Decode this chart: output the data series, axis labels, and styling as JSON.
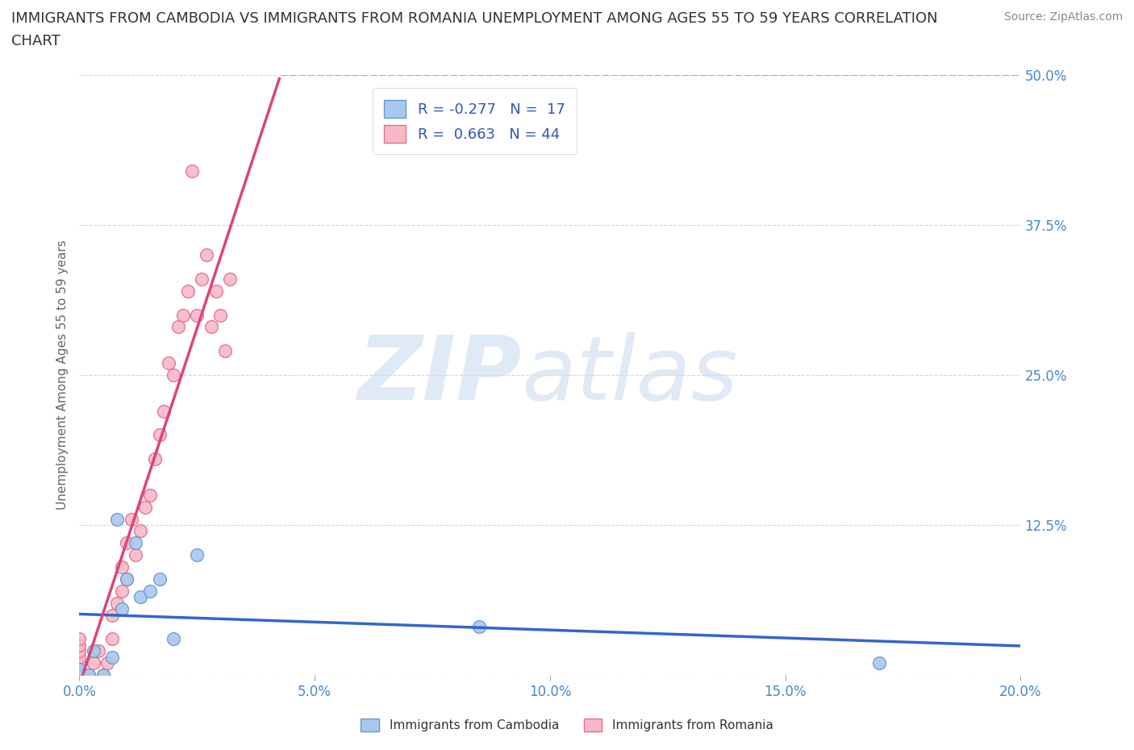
{
  "title_line1": "IMMIGRANTS FROM CAMBODIA VS IMMIGRANTS FROM ROMANIA UNEMPLOYMENT AMONG AGES 55 TO 59 YEARS CORRELATION",
  "title_line2": "CHART",
  "source": "Source: ZipAtlas.com",
  "ylabel": "Unemployment Among Ages 55 to 59 years",
  "xlim": [
    0.0,
    0.2
  ],
  "ylim": [
    0.0,
    0.5
  ],
  "xticks": [
    0.0,
    0.05,
    0.1,
    0.15,
    0.2
  ],
  "xticklabels": [
    "0.0%",
    "5.0%",
    "10.0%",
    "15.0%",
    "20.0%"
  ],
  "yticks": [
    0.0,
    0.125,
    0.25,
    0.375,
    0.5
  ],
  "yticklabels": [
    "",
    "12.5%",
    "25.0%",
    "37.5%",
    "50.0%"
  ],
  "cambodia_color": "#A8C8F0",
  "cambodia_edge": "#6699CC",
  "romania_color": "#F8B8C8",
  "romania_edge": "#E07090",
  "trendline_cambodia_color": "#3366CC",
  "trendline_romania_color": "#DD4477",
  "background_color": "#FFFFFF",
  "grid_color": "#BBBBBB",
  "legend_label_cambodia": "R = -0.277   N =  17",
  "legend_label_romania": "R =  0.663   N = 44",
  "legend_color": "#3355BB",
  "title_color": "#333333",
  "source_color": "#888888",
  "tick_color": "#4488CC",
  "ylabel_color": "#666666",
  "cambodia_x": [
    0.0,
    0.0,
    0.002,
    0.003,
    0.005,
    0.007,
    0.008,
    0.009,
    0.01,
    0.012,
    0.013,
    0.015,
    0.017,
    0.02,
    0.025,
    0.085,
    0.17
  ],
  "cambodia_y": [
    0.0,
    0.005,
    0.0,
    0.02,
    0.0,
    0.015,
    0.13,
    0.055,
    0.08,
    0.11,
    0.065,
    0.07,
    0.08,
    0.03,
    0.1,
    0.04,
    0.01
  ],
  "romania_x": [
    0.0,
    0.0,
    0.0,
    0.0,
    0.0,
    0.0,
    0.0,
    0.0,
    0.0,
    0.0,
    0.002,
    0.003,
    0.004,
    0.005,
    0.006,
    0.007,
    0.007,
    0.008,
    0.009,
    0.009,
    0.01,
    0.01,
    0.011,
    0.012,
    0.013,
    0.014,
    0.015,
    0.016,
    0.017,
    0.018,
    0.019,
    0.02,
    0.021,
    0.022,
    0.023,
    0.024,
    0.025,
    0.026,
    0.027,
    0.028,
    0.029,
    0.03,
    0.031,
    0.032
  ],
  "romania_y": [
    0.0,
    0.0,
    0.0,
    0.0,
    0.005,
    0.01,
    0.015,
    0.02,
    0.025,
    0.03,
    0.0,
    0.01,
    0.02,
    0.0,
    0.01,
    0.03,
    0.05,
    0.06,
    0.07,
    0.09,
    0.08,
    0.11,
    0.13,
    0.1,
    0.12,
    0.14,
    0.15,
    0.18,
    0.2,
    0.22,
    0.26,
    0.25,
    0.29,
    0.3,
    0.32,
    0.42,
    0.3,
    0.33,
    0.35,
    0.29,
    0.32,
    0.3,
    0.27,
    0.33
  ],
  "title_fontsize": 13,
  "source_fontsize": 10,
  "ylabel_fontsize": 11,
  "tick_fontsize": 12,
  "legend_fontsize": 13,
  "marker_size": 130
}
